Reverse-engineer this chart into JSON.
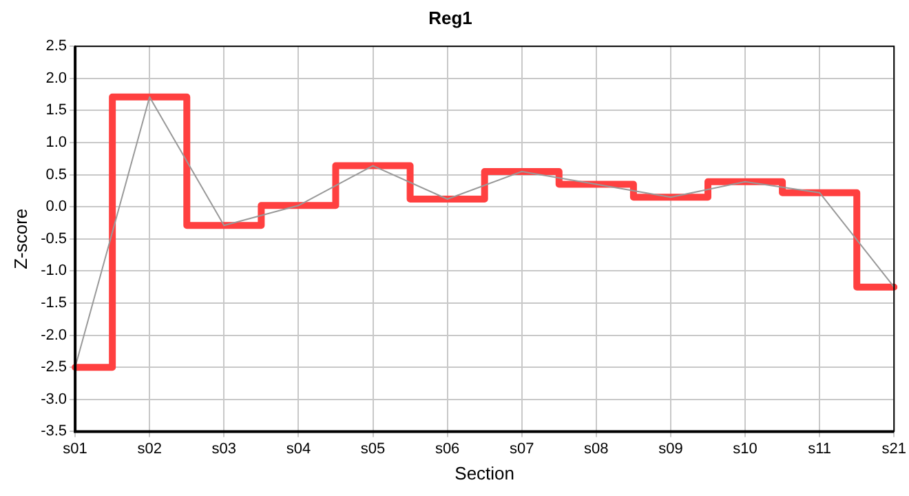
{
  "chart_data": {
    "type": "line",
    "title": "Reg1",
    "xlabel": "Section",
    "ylabel": "Z-score",
    "categories": [
      "s01",
      "s02",
      "s03",
      "s04",
      "s05",
      "s06",
      "s07",
      "s08",
      "s09",
      "s10",
      "s11",
      "s21"
    ],
    "series": [
      {
        "type": "line",
        "color": "#999999",
        "values": [
          -2.5,
          1.71,
          -0.29,
          0.02,
          0.64,
          0.12,
          0.55,
          0.35,
          0.15,
          0.39,
          0.22,
          -1.25
        ]
      },
      {
        "type": "step",
        "color": "#ff4040",
        "values": [
          -2.5,
          1.71,
          -0.29,
          0.02,
          0.64,
          0.12,
          0.55,
          0.35,
          0.15,
          0.39,
          0.22,
          -1.25
        ]
      }
    ],
    "ylim": [
      -3.5,
      2.5
    ],
    "yticks": [
      -3.5,
      {
        "value": -3,
        "label": "-3.0"
      },
      -2.5,
      {
        "value": -2,
        "label": "-2.0"
      },
      -1.5,
      {
        "value": -1,
        "label": "-1.0"
      },
      -0.5,
      {
        "value": 0,
        "label": "0.0"
      },
      0.5,
      {
        "value": 1,
        "label": "1.0"
      },
      1.5,
      {
        "value": 2,
        "label": "2.0"
      },
      2.5
    ],
    "grid": true,
    "legend": false
  }
}
